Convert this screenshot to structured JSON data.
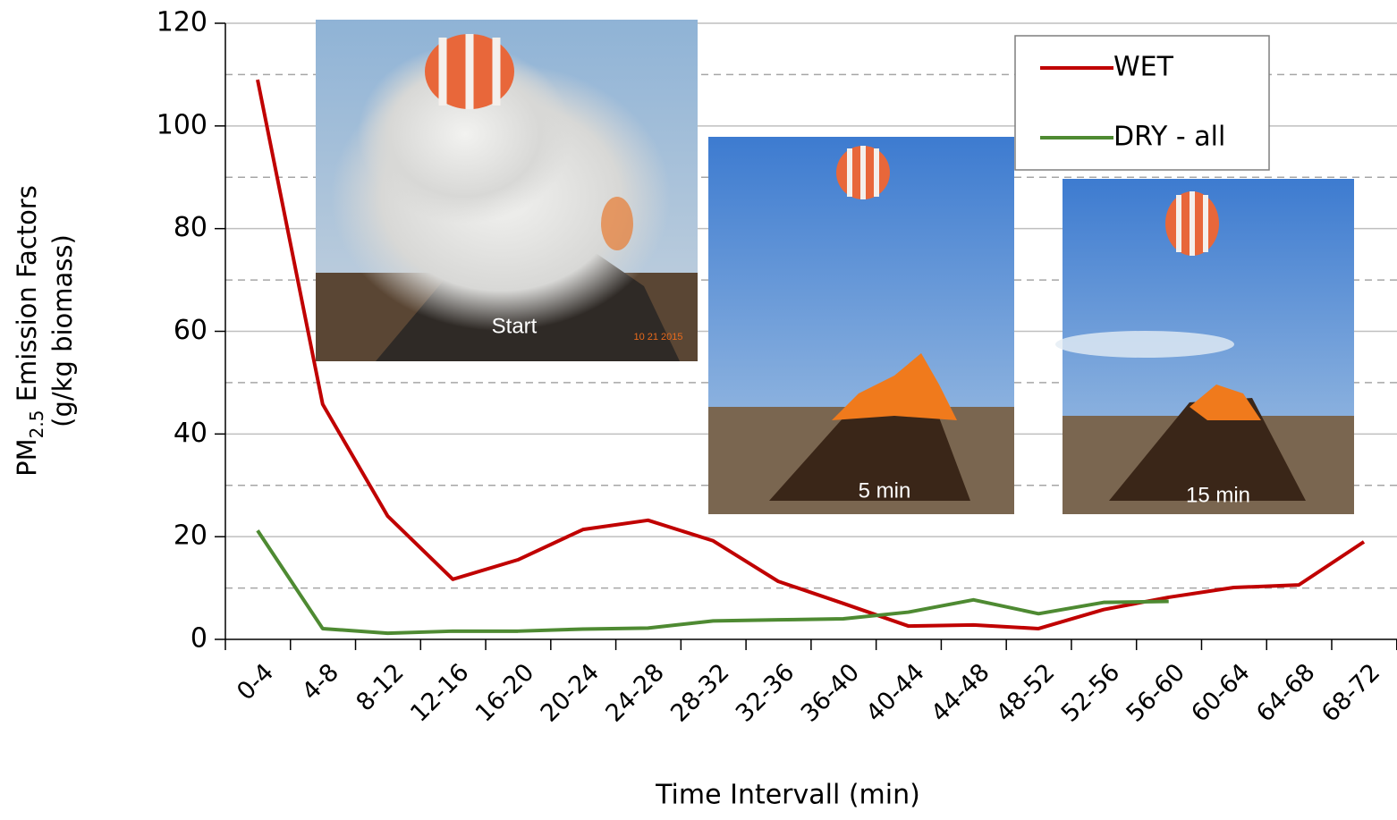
{
  "chart_data": {
    "type": "line",
    "xlabel": "Time Intervall (min)",
    "ylabel": {
      "main": "PM",
      "subscript": "2.5",
      "rest": " Emission Factors",
      "line2": "(g/kg biomass)"
    },
    "categories": [
      "0-4",
      "4-8",
      "8-12",
      "12-16",
      "16-20",
      "20-24",
      "24-28",
      "28-32",
      "32-36",
      "36-40",
      "40-44",
      "44-48",
      "48-52",
      "52-56",
      "56-60",
      "60-64",
      "64-68",
      "68-72"
    ],
    "series": [
      {
        "name": "WET",
        "color": "#c00000",
        "values": [
          109,
          45.8,
          24,
          11.7,
          15.5,
          21.4,
          23.2,
          19.2,
          11.3,
          7,
          2.6,
          2.8,
          2.1,
          5.8,
          8.2,
          10.1,
          10.6,
          19
        ]
      },
      {
        "name": "DRY - all",
        "color": "#4e8a32",
        "values": [
          21.2,
          2.1,
          1.2,
          1.6,
          1.6,
          2.0,
          2.2,
          3.6,
          3.8,
          4.0,
          5.3,
          7.7,
          5.0,
          7.2,
          7.4,
          null,
          null,
          null
        ]
      }
    ],
    "ylim": [
      0,
      120
    ],
    "yticks": [
      0,
      20,
      40,
      60,
      80,
      100,
      120
    ],
    "yminor": [
      10,
      30,
      50,
      70,
      90,
      110
    ],
    "grid": true,
    "legend": "top-right",
    "annotations": [
      "Start",
      "5 min",
      "15 min",
      "10 21 2015"
    ]
  }
}
